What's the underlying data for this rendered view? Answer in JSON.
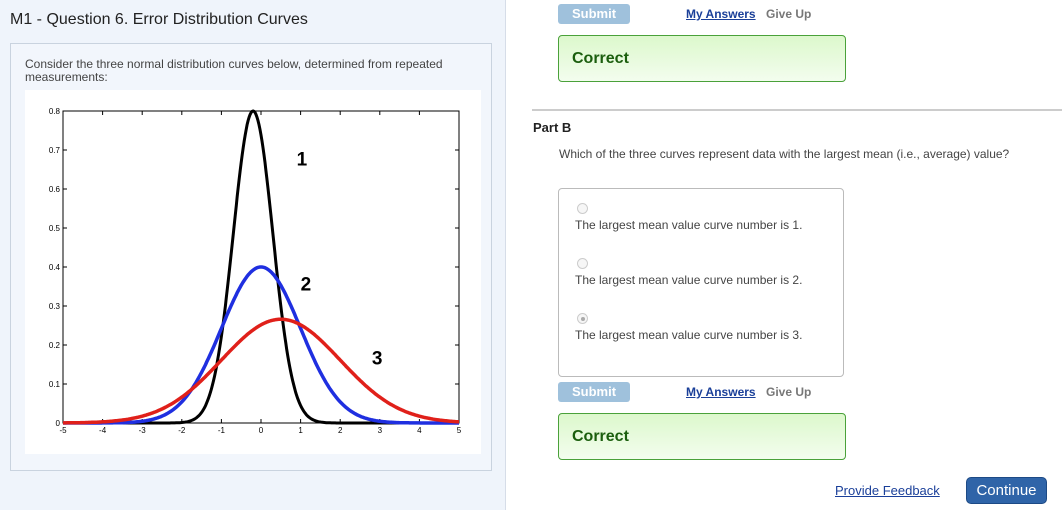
{
  "header": {
    "title": "M1 - Question 6. Error Distribution Curves"
  },
  "question": {
    "prompt": "Consider the three normal distribution curves below, determined from repeated measurements:"
  },
  "chart_data": {
    "type": "line",
    "title": "",
    "xlabel": "",
    "ylabel": "",
    "xlim": [
      -5,
      5
    ],
    "ylim": [
      0,
      0.8
    ],
    "xticks": [
      "-5",
      "-4",
      "-3",
      "-2",
      "-1",
      "0",
      "1",
      "2",
      "3",
      "4",
      "5"
    ],
    "yticks": [
      "0",
      "0.1",
      "0.2",
      "0.3",
      "0.4",
      "0.5",
      "0.6",
      "0.7",
      "0.8"
    ],
    "series": [
      {
        "name": "1",
        "mean": -0.2,
        "sd": 0.5,
        "peak": 0.8,
        "color": "#000000"
      },
      {
        "name": "2",
        "mean": 0,
        "sd": 1,
        "peak": 0.4,
        "color": "#1f2fe0"
      },
      {
        "name": "3",
        "mean": 0.5,
        "sd": 1.5,
        "peak": 0.266,
        "color": "#e0201a"
      }
    ]
  },
  "partA": {
    "submit": "Submit",
    "my_answers": "My Answers",
    "give_up": "Give Up",
    "result": "Correct"
  },
  "partB": {
    "title": "Part B",
    "question": "Which of the three curves represent data with the largest mean (i.e., average) value?",
    "choices": [
      {
        "label": "The largest mean value curve number is 1.",
        "selected": false
      },
      {
        "label": "The largest mean value curve number is 2.",
        "selected": false
      },
      {
        "label": "The largest mean value curve number is 3.",
        "selected": true
      }
    ],
    "submit": "Submit",
    "my_answers": "My Answers",
    "give_up": "Give Up",
    "result": "Correct"
  },
  "footer": {
    "feedback": "Provide Feedback",
    "continue": "Continue"
  },
  "colors": {
    "accent": "#2f64a8",
    "correct_border": "#4aa13a"
  }
}
